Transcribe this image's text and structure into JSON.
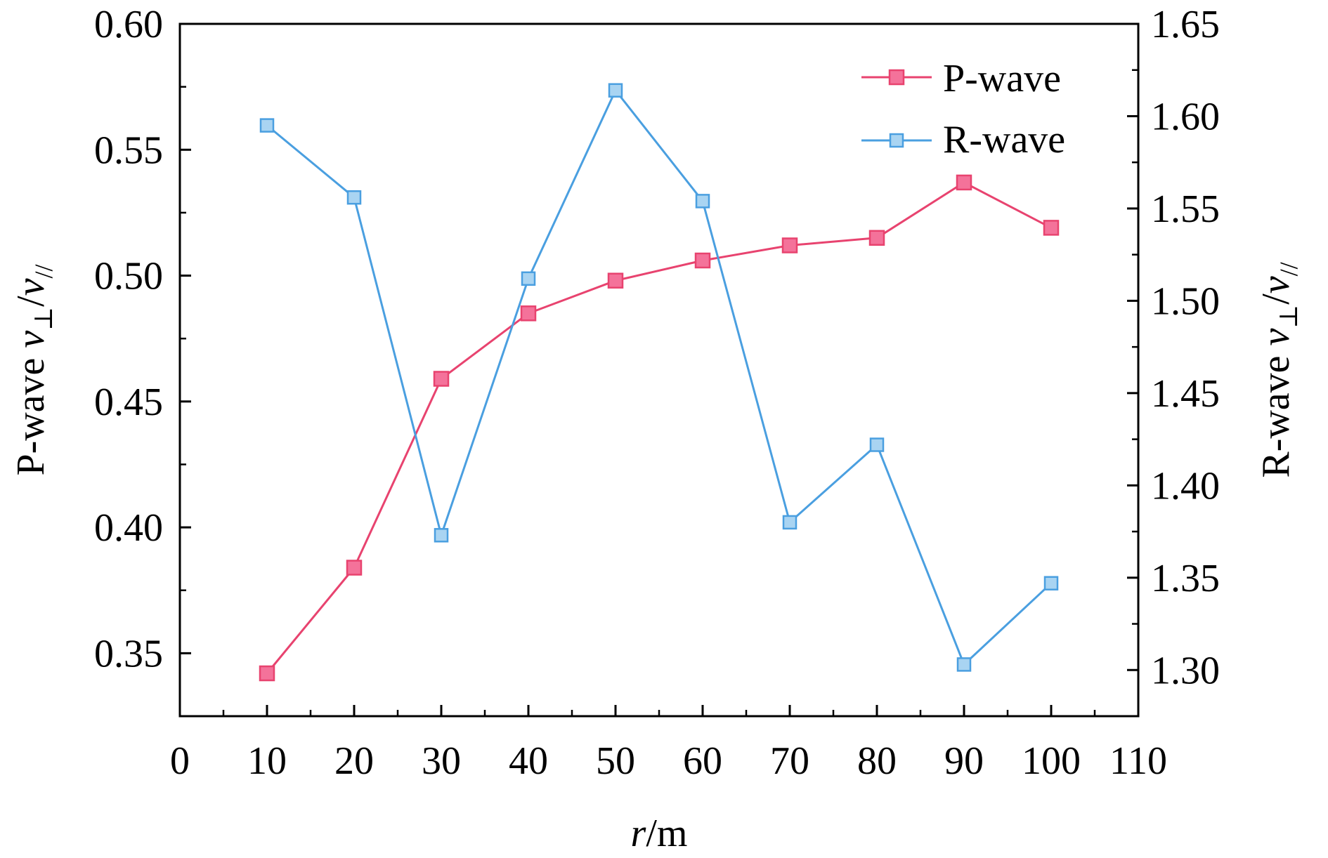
{
  "chart_data": {
    "type": "line",
    "x": [
      10,
      20,
      30,
      40,
      50,
      60,
      70,
      80,
      90,
      100
    ],
    "xlabel": {
      "var": "r",
      "unit": "/m"
    },
    "xlim": [
      0,
      110
    ],
    "xticks": [
      "0",
      "10",
      "20",
      "30",
      "40",
      "50",
      "60",
      "70",
      "80",
      "90",
      "100",
      "110"
    ],
    "ylabel_left": {
      "prefix": "P-wave ",
      "v": "v",
      "sub1": "⊥",
      "slash": "/",
      "sub2": "//"
    },
    "ylabel_right": {
      "prefix": "R-wave ",
      "v": "v",
      "sub1": "⊥",
      "slash": "/",
      "sub2": "//"
    },
    "ylim_left": [
      0.325,
      0.6
    ],
    "yticks_left": [
      "0.35",
      "0.40",
      "0.45",
      "0.50",
      "0.55",
      "0.60"
    ],
    "ylim_right": [
      1.275,
      1.65
    ],
    "yticks_right": [
      "1.30",
      "1.35",
      "1.40",
      "1.45",
      "1.50",
      "1.55",
      "1.60",
      "1.65"
    ],
    "grid": false,
    "legend_position": "top-right",
    "series": [
      {
        "name": "P-wave",
        "axis": "left",
        "color": "#e8436f",
        "marker_fill": "#f4729a",
        "values": [
          0.342,
          0.384,
          0.459,
          0.485,
          0.498,
          0.506,
          0.512,
          0.515,
          0.537,
          0.519
        ]
      },
      {
        "name": "R-wave",
        "axis": "right",
        "color": "#4a9fe0",
        "marker_fill": "#a9d4f2",
        "values": [
          1.595,
          1.556,
          1.373,
          1.512,
          1.614,
          1.554,
          1.38,
          1.422,
          1.303,
          1.347
        ]
      }
    ]
  }
}
